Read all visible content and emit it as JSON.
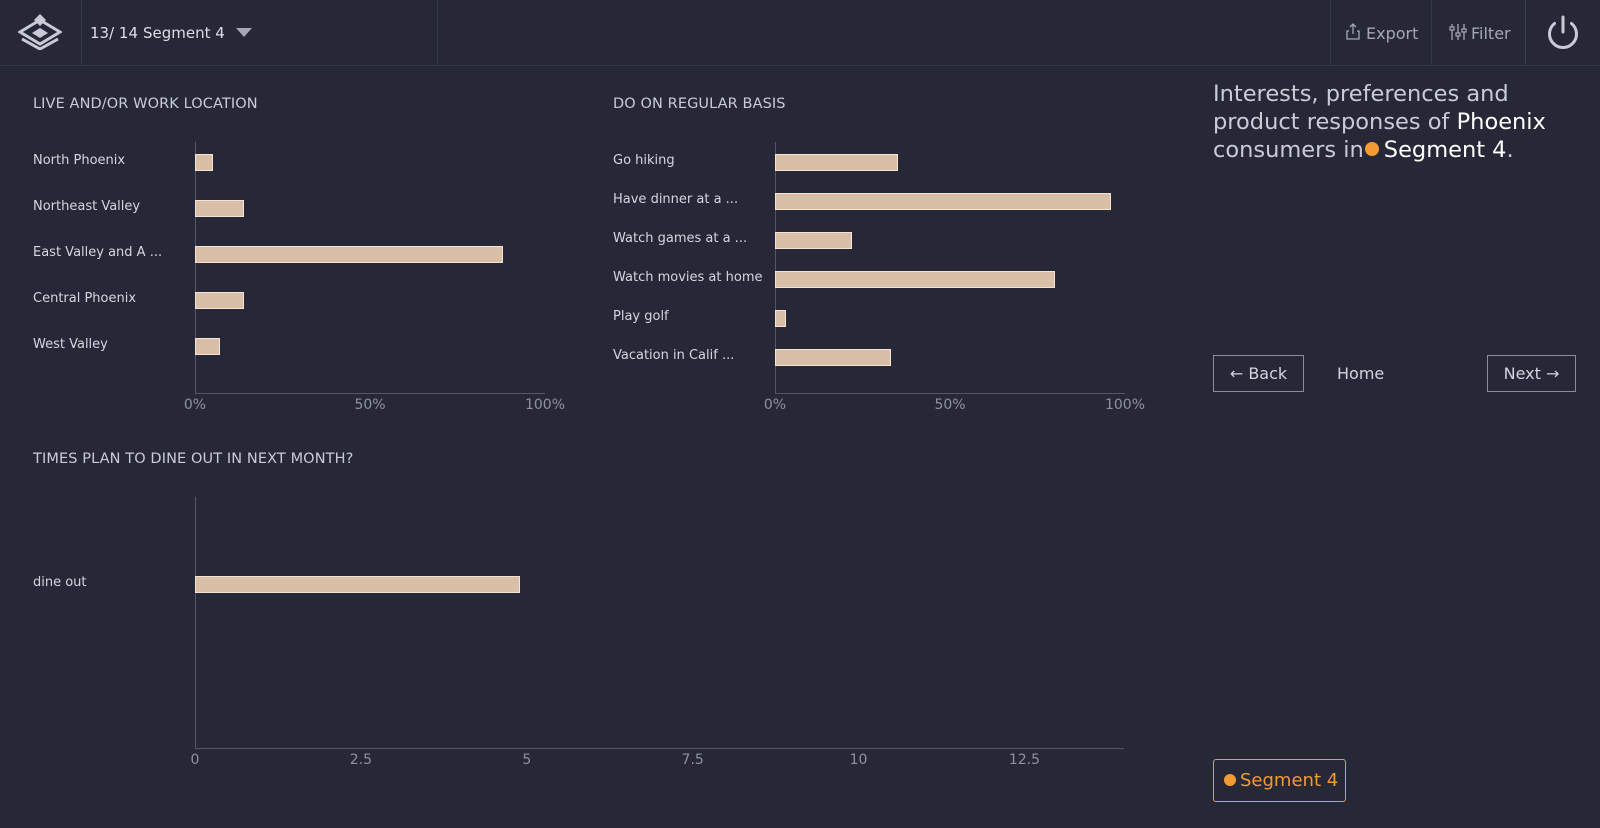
{
  "header": {
    "page_count": "13/ 14",
    "segment_name": "Segment 4",
    "export_label": "Export",
    "filter_label": "Filter"
  },
  "intro": {
    "prefix": "Interests, preferences and product responses of",
    "city": "Phoenix",
    "middle": "consumers in",
    "segment": "Segment 4",
    "suffix": "."
  },
  "nav": {
    "back_label": "← Back",
    "home_label": "Home",
    "next_label": "Next →"
  },
  "legend": {
    "segment_label": "Segment 4",
    "segment_color": "#f49a32"
  },
  "colors": {
    "bar_fill": "#d9bfa8",
    "bar_border": "#f4e2d2",
    "background": "#262838"
  },
  "chart_data": [
    {
      "type": "bar",
      "orientation": "horizontal",
      "title": "LIVE AND/OR WORK LOCATION",
      "categories": [
        "North Phoenix",
        "Northeast Valley",
        "East Valley and A ...",
        "Central Phoenix",
        "West Valley"
      ],
      "values": [
        5,
        14,
        88,
        14,
        7
      ],
      "xlim": [
        0,
        100
      ],
      "xticks": [
        "0%",
        "50%",
        "100%"
      ],
      "grid": false
    },
    {
      "type": "bar",
      "orientation": "horizontal",
      "title": "DO ON REGULAR BASIS",
      "categories": [
        "Go hiking",
        "Have dinner at a ...",
        "Watch games at a ...",
        "Watch movies at home",
        "Play golf",
        "Vacation in Calif ..."
      ],
      "values": [
        35,
        96,
        22,
        80,
        3,
        33
      ],
      "xlim": [
        0,
        100
      ],
      "xticks": [
        "0%",
        "50%",
        "100%"
      ],
      "grid": false
    },
    {
      "type": "bar",
      "orientation": "horizontal",
      "title": "TIMES PLAN TO DINE OUT IN NEXT MONTH?",
      "categories": [
        "dine out"
      ],
      "values": [
        4.9
      ],
      "xlim": [
        0,
        14
      ],
      "xticks": [
        "0",
        "2.5",
        "5",
        "7.5",
        "10",
        "12.5"
      ],
      "xtick_values": [
        0,
        2.5,
        5,
        7.5,
        10,
        12.5
      ],
      "grid": false
    }
  ]
}
